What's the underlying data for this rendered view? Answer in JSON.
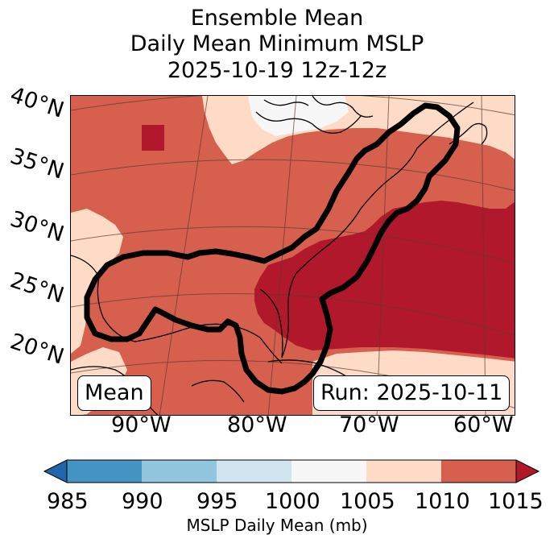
{
  "title": {
    "line1": "Ensemble Mean",
    "line2": "Daily Mean Minimum MSLP",
    "line3": "2025-10-19 12z-12z"
  },
  "map": {
    "lat_labels": [
      "40°N",
      "35°N",
      "30°N",
      "25°N",
      "20°N"
    ],
    "lon_labels": [
      "90°W",
      "80°W",
      "70°W",
      "60°W"
    ],
    "mean_box": "Mean",
    "run_box": "Run: 2025-10-11",
    "field_colors": {
      "1005_1010": "#fddbc7",
      "1000_1005": "#f7f7f7",
      "1010_1015": "#d6604d",
      "over_1015": "#b2182b"
    }
  },
  "colorbar": {
    "ticks": [
      "985",
      "990",
      "995",
      "1000",
      "1005",
      "1010",
      "1015"
    ],
    "label": "MSLP Daily Mean (mb)",
    "colors": {
      "under": "#2166ac",
      "985_990": "#4393c3",
      "990_995": "#92c5de",
      "995_1000": "#d1e5f0",
      "1000_1005": "#f7f7f7",
      "1005_1010": "#fddbc7",
      "1010_1015": "#d6604d",
      "over": "#b2182b"
    }
  }
}
